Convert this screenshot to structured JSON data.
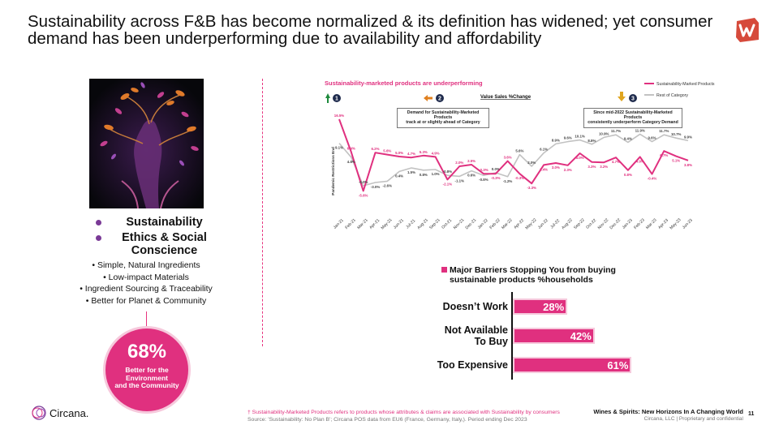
{
  "slide": {
    "title": "Sustainability across F&B has become normalized & its definition has widened; yet consumer demand has been underperforming due to availability and affordability",
    "brand_color": "#e0307f"
  },
  "pillars": {
    "items": [
      "Sustainability",
      "Ethics & Social Conscience"
    ],
    "attributes": [
      "• Simple, Natural Ingredients",
      "• Low-impact Materials",
      "• Ingredient Sourcing & Traceability",
      "• Better for Planet & Community"
    ],
    "stat": {
      "value": "68%",
      "label_lines": [
        "Better for the",
        "Environment",
        "and the Community"
      ]
    }
  },
  "chart_data": [
    {
      "type": "line",
      "title": "Sustainability-marketed products are underperforming",
      "subtitle": "Value Sales %Change",
      "legend": [
        "Sustainability-Marked Products",
        "Rest of Category"
      ],
      "categories": [
        "Jan-21",
        "Feb-21",
        "Mar-21",
        "Apr-21",
        "May-21",
        "Jun-21",
        "Jul-21",
        "Aug-21",
        "Sep-21",
        "Oct-21",
        "Nov-21",
        "Dec-21",
        "Jan-22",
        "Feb-22",
        "Mar-22",
        "Apr-22",
        "May-22",
        "Jun-22",
        "Jul-22",
        "Aug-22",
        "Sep-22",
        "Oct-22",
        "Nov-22",
        "Dec-22",
        "Jan-23",
        "Feb-23",
        "Mar-23",
        "Apr-23",
        "May-23",
        "Jun-23"
      ],
      "series": [
        {
          "name": "Sustainability-Marked Products",
          "color": "#e0307f",
          "values": [
            16.5,
            6.4,
            -5.6,
            6.2,
            5.6,
            5.0,
            4.7,
            5.3,
            4.9,
            -2.1,
            2.0,
            2.5,
            -0.3,
            -0.3,
            3.6,
            -0.3,
            -3.3,
            2.4,
            3.0,
            2.3,
            6.0,
            3.3,
            3.2,
            4.7,
            0.8,
            4.9,
            -0.4,
            6.7,
            5.1,
            3.8
          ]
        },
        {
          "name": "Rest of Category",
          "color": "#c2c2c2",
          "values": [
            9.1,
            4.8,
            -4.0,
            -3.0,
            -2.6,
            0.4,
            1.5,
            0.8,
            1.0,
            -0.8,
            -1.1,
            0.6,
            -0.8,
            0.0,
            -1.2,
            5.6,
            2.0,
            6.1,
            8.9,
            9.6,
            10.1,
            8.8,
            10.9,
            11.7,
            9.4,
            11.9,
            9.6,
            11.7,
            10.7,
            9.9
          ]
        }
      ],
      "ylim": [
        -7,
        18
      ],
      "annotations": [
        {
          "number": "1",
          "arrow": "up"
        },
        {
          "number": "2",
          "arrow": "left-right",
          "text_lines": [
            "Demand for Sustainability-Marketed Products",
            "track at or slightly ahead of Category"
          ]
        },
        {
          "number": "3",
          "arrow": "down",
          "text_lines": [
            "Since mid-2022 Sustainability-Marketed Products",
            "consistently underperform Category Demand"
          ]
        }
      ],
      "event_label": "Pandemic Restrictions End"
    },
    {
      "type": "bar",
      "orientation": "horizontal",
      "title_lines": [
        "Major Barriers Stopping You from buying",
        "sustainable products %households"
      ],
      "categories": [
        [
          "Doesn’t Work"
        ],
        [
          "Not Available",
          "To Buy"
        ],
        [
          "Too Expensive"
        ]
      ],
      "values": [
        28,
        42,
        61
      ],
      "value_labels": [
        "28%",
        "42%",
        "61%"
      ],
      "xlim": [
        0,
        100
      ]
    }
  ],
  "footer": {
    "logo_text": "Circana.",
    "footnote_lines": [
      "† Sustainability-Marketed Products refers to products whose attributes & claims are associated with Sustainability by consumers",
      "Source: 'Sustainability: No Plan B'; Circana POS data from EU6 (France, Germany, Italy,). Period ending Dec 2023"
    ],
    "report_title": "Wines & Spirits: New Horizons In A Changing World",
    "report_subtitle": "Circana, LLC  |  Proprietary and confidential",
    "page_number": "11"
  }
}
